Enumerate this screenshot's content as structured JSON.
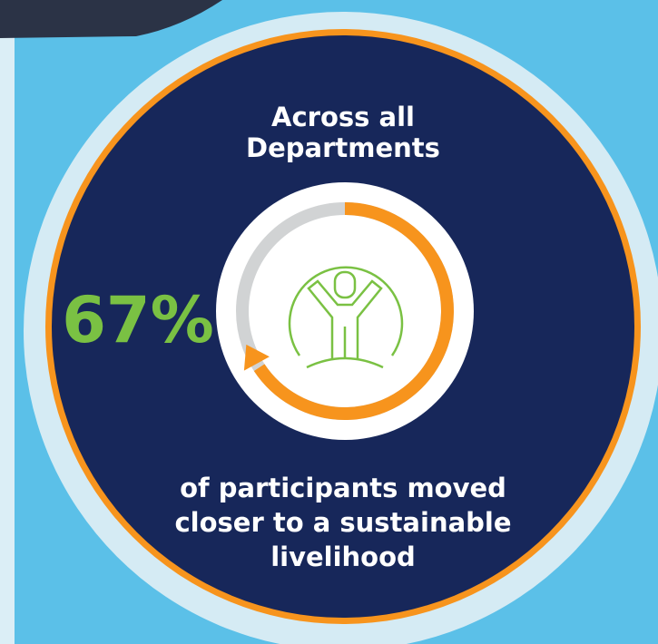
{
  "title_lines": [
    "Across all",
    "Departments"
  ],
  "stat": {
    "value": 67,
    "label": "67%"
  },
  "caption_lines": [
    "of participants moved",
    "closer to a sustainable",
    "livelihood"
  ]
}
